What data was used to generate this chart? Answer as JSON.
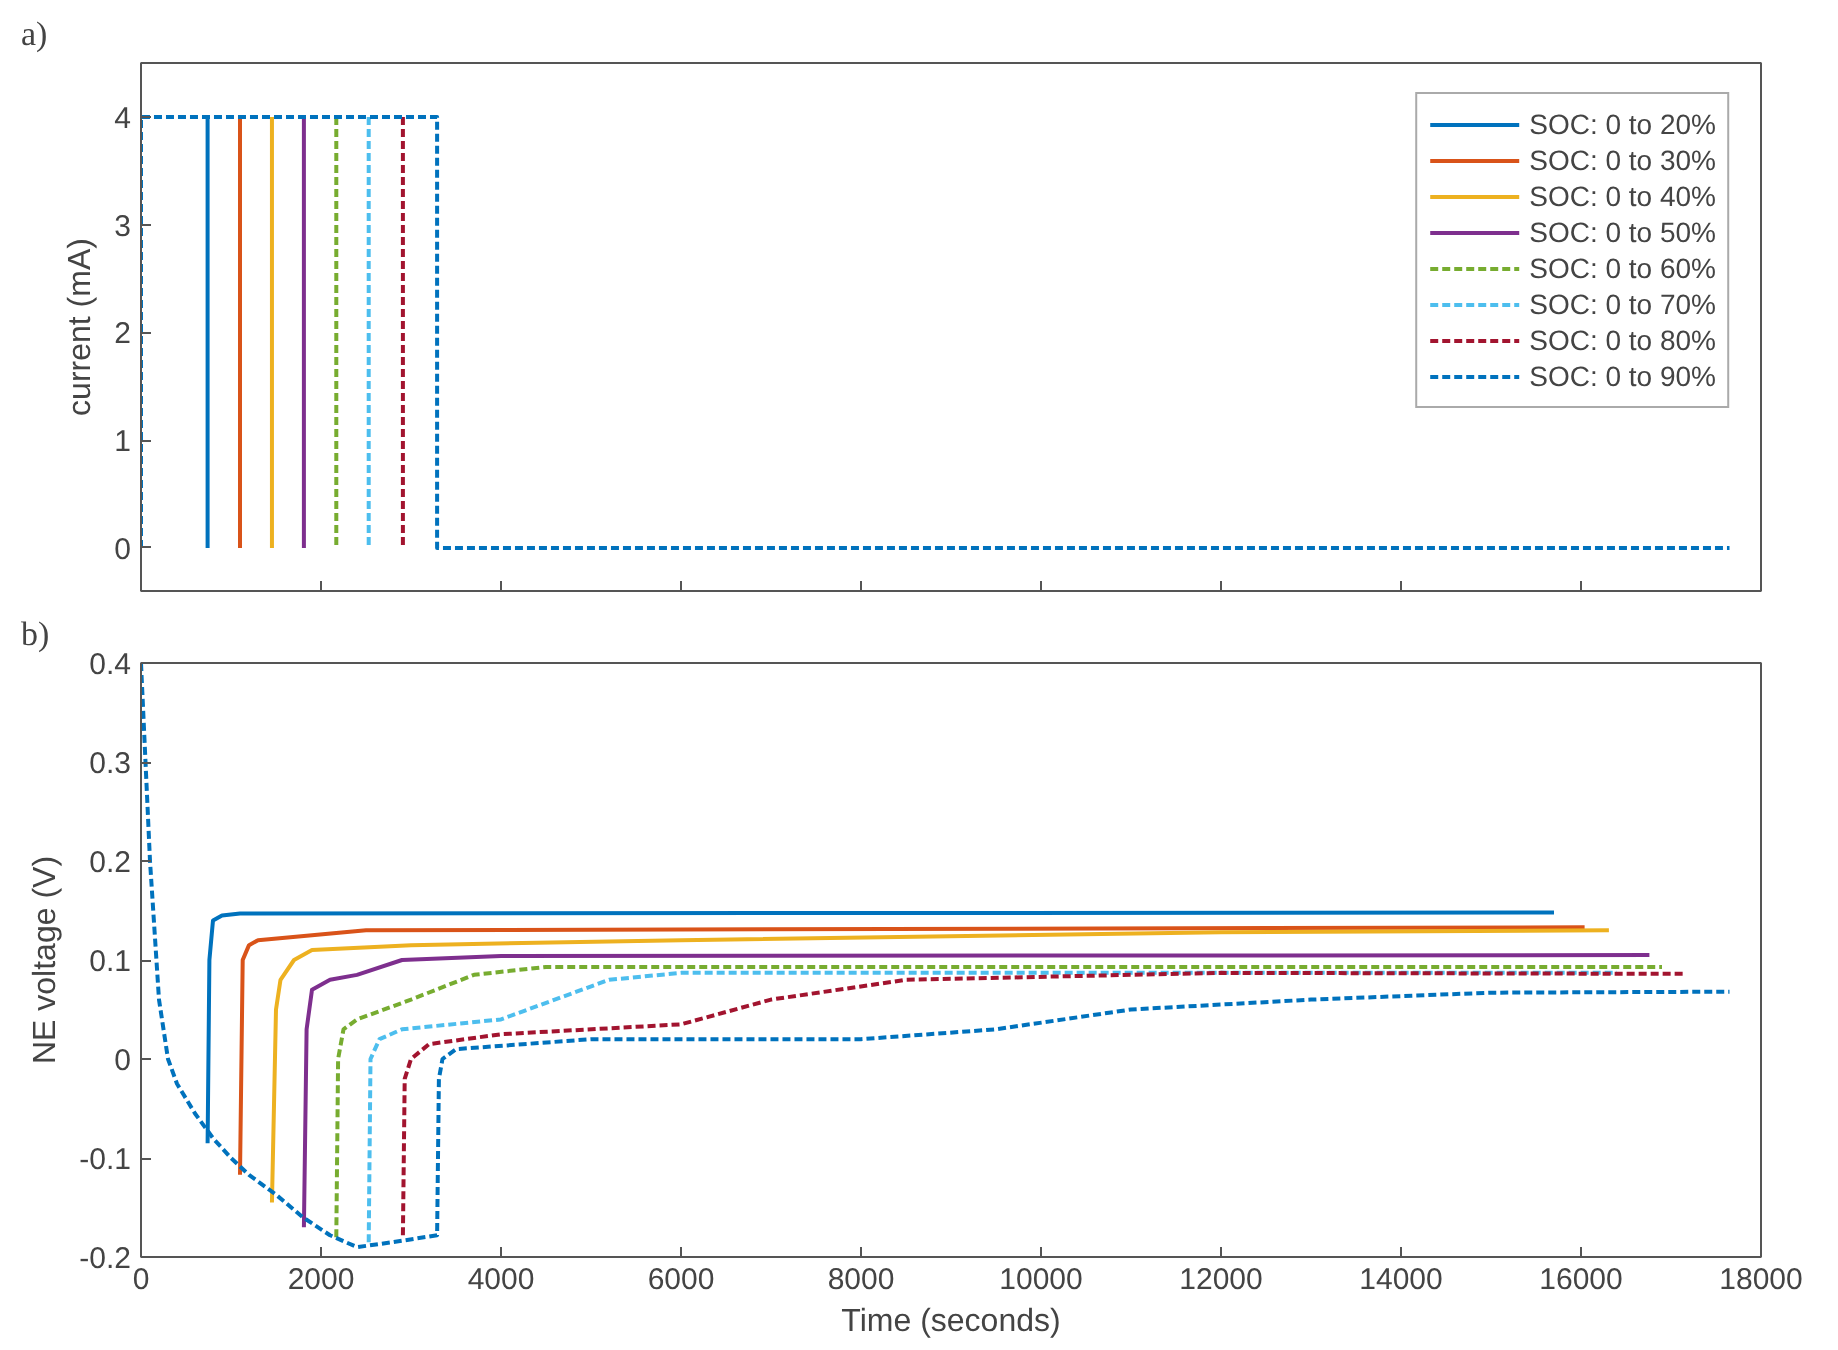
{
  "chart_data": [
    {
      "type": "line",
      "title": "a)",
      "ylabel": "current (mA)",
      "xlim": [
        0,
        18000
      ],
      "ylim": [
        -0.4,
        4.5
      ],
      "xticks": [
        0,
        2000,
        4000,
        6000,
        8000,
        10000,
        12000,
        14000,
        16000,
        18000
      ],
      "yticks": [
        0,
        1,
        2,
        3,
        4
      ],
      "tick_labels": "y",
      "grid": false,
      "legend": "top right",
      "series": [
        {
          "name": "SOC: 0 to 20%",
          "color": "#0072bd",
          "line_style": "solid",
          "x": [
            740,
            740
          ],
          "values": [
            4,
            0
          ]
        },
        {
          "name": "SOC: 0 to 30%",
          "color": "#d95319",
          "line_style": "solid",
          "x": [
            1100,
            1100
          ],
          "values": [
            4,
            0
          ]
        },
        {
          "name": "SOC: 0 to 40%",
          "color": "#edb120",
          "line_style": "solid",
          "x": [
            1455,
            1455
          ],
          "values": [
            4,
            0
          ]
        },
        {
          "name": "SOC: 0 to 50%",
          "color": "#7e2f8e",
          "line_style": "solid",
          "x": [
            1810,
            1810
          ],
          "values": [
            4,
            0
          ]
        },
        {
          "name": "SOC: 0 to 60%",
          "color": "#77ac30",
          "line_style": "dashed",
          "x": [
            2170,
            2170
          ],
          "values": [
            4,
            0
          ]
        },
        {
          "name": "SOC: 0 to 70%",
          "color": "#4dbeee",
          "line_style": "dashed",
          "x": [
            2530,
            2530
          ],
          "values": [
            4,
            0
          ]
        },
        {
          "name": "SOC: 0 to 80%",
          "color": "#a2142f",
          "line_style": "dashed",
          "x": [
            2910,
            2910
          ],
          "values": [
            4,
            0
          ]
        },
        {
          "name": "SOC: 0 to 90%",
          "color": "#0072bd",
          "line_style": "dashed",
          "x": [
            0,
            0,
            3290,
            3290,
            17650
          ],
          "values": [
            0,
            4,
            4,
            0,
            0
          ]
        }
      ]
    },
    {
      "type": "line",
      "title": "b)",
      "xlabel": "Time (seconds)",
      "ylabel": "NE voltage (V)",
      "xlim": [
        0,
        18000
      ],
      "ylim": [
        -0.2,
        0.4
      ],
      "xticks": [
        0,
        2000,
        4000,
        6000,
        8000,
        10000,
        12000,
        14000,
        16000,
        18000
      ],
      "yticks": [
        -0.2,
        -0.1,
        0,
        0.1,
        0.2,
        0.3,
        0.4
      ],
      "grid": false,
      "legend": false,
      "series": [
        {
          "color": "#0072bd",
          "line_style": "solid",
          "x": [
            740,
            760,
            800,
            900,
            1100,
            15700
          ],
          "values": [
            -0.085,
            0.1,
            0.14,
            0.145,
            0.147,
            0.148
          ]
        },
        {
          "color": "#d95319",
          "line_style": "solid",
          "x": [
            1100,
            1130,
            1200,
            1300,
            2500,
            16040
          ],
          "values": [
            -0.117,
            0.1,
            0.115,
            0.12,
            0.13,
            0.133
          ]
        },
        {
          "color": "#edb120",
          "line_style": "solid",
          "x": [
            1455,
            1500,
            1550,
            1700,
            1900,
            3000,
            6000,
            12000,
            16310
          ],
          "values": [
            -0.145,
            0.05,
            0.08,
            0.1,
            0.11,
            0.115,
            0.12,
            0.128,
            0.13
          ]
        },
        {
          "color": "#7e2f8e",
          "line_style": "solid",
          "x": [
            1810,
            1840,
            1900,
            2100,
            2400,
            2900,
            4000,
            16760
          ],
          "values": [
            -0.17,
            0.03,
            0.07,
            0.08,
            0.085,
            0.1,
            0.104,
            0.105
          ]
        },
        {
          "color": "#77ac30",
          "line_style": "dashed",
          "x": [
            2170,
            2190,
            2250,
            2400,
            3000,
            3700,
            4500,
            16900
          ],
          "values": [
            -0.18,
            0.0,
            0.03,
            0.04,
            0.06,
            0.085,
            0.093,
            0.093
          ]
        },
        {
          "color": "#4dbeee",
          "line_style": "dashed",
          "x": [
            2530,
            2550,
            2650,
            2900,
            4000,
            5200,
            6000,
            16400
          ],
          "values": [
            -0.185,
            0.0,
            0.02,
            0.03,
            0.04,
            0.08,
            0.087,
            0.087
          ]
        },
        {
          "color": "#a2142f",
          "line_style": "dashed",
          "x": [
            2910,
            2930,
            3000,
            3200,
            4000,
            6000,
            7000,
            8500,
            12000,
            17160
          ],
          "values": [
            -0.178,
            -0.02,
            0.0,
            0.015,
            0.025,
            0.035,
            0.06,
            0.08,
            0.087,
            0.086
          ]
        },
        {
          "color": "#0072bd",
          "line_style": "dashed",
          "x": [
            0,
            50,
            100,
            200,
            300,
            400,
            600,
            800,
            1000,
            1200,
            1500,
            1800,
            2100,
            2400,
            2800,
            3290,
            3310,
            3350,
            3500,
            5000,
            8000,
            9500,
            11000,
            13000,
            15000,
            17650
          ],
          "values": [
            0.4,
            0.3,
            0.2,
            0.06,
            0,
            -0.025,
            -0.055,
            -0.08,
            -0.1,
            -0.117,
            -0.137,
            -0.16,
            -0.178,
            -0.19,
            -0.185,
            -0.178,
            -0.02,
            0.0,
            0.01,
            0.02,
            0.02,
            0.03,
            0.05,
            0.06,
            0.067,
            0.068
          ]
        }
      ]
    }
  ]
}
